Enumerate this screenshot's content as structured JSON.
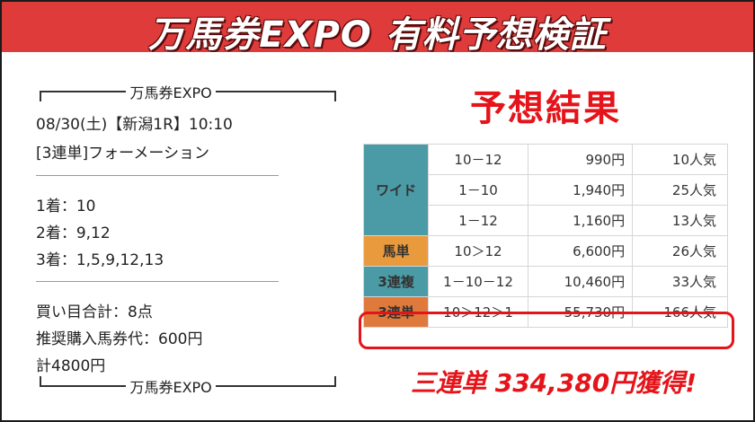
{
  "banner": {
    "title": "万馬券EXPO 有料予想検証"
  },
  "prediction": {
    "brand_top": "万馬券EXPO",
    "race": "08/30(土)【新潟1R】10:10",
    "bet_type": "[3連単]フォーメーション",
    "first": "1着：10",
    "second": "2着：9,12",
    "third": "3着：1,5,9,12,13",
    "total_points": "買い目合計：8点",
    "recommended": "推奨購入馬券代：600円",
    "total": "計4800円",
    "brand_bottom": "万馬券EXPO"
  },
  "result": {
    "title": "予想結果",
    "rows": [
      {
        "type": "ワイド",
        "combo": "10－12",
        "payout": "990円",
        "pop": "10人気"
      },
      {
        "type": "",
        "combo": "1－10",
        "payout": "1,940円",
        "pop": "25人気"
      },
      {
        "type": "",
        "combo": "1－12",
        "payout": "1,160円",
        "pop": "13人気"
      },
      {
        "type": "馬単",
        "combo": "10＞12",
        "payout": "6,600円",
        "pop": "26人気"
      },
      {
        "type": "3連複",
        "combo": "1－10－12",
        "payout": "10,460円",
        "pop": "33人気"
      },
      {
        "type": "3連単",
        "combo": "10＞12＞1",
        "payout": "55,730円",
        "pop": "166人気"
      }
    ],
    "colors": {
      "wide": "#4a9ba6",
      "umatan": "#e89a3c",
      "sanrenpuku": "#4a9ba6",
      "sanrentan": "#e07a3c"
    }
  },
  "gain": "三連単 334,380円獲得!"
}
